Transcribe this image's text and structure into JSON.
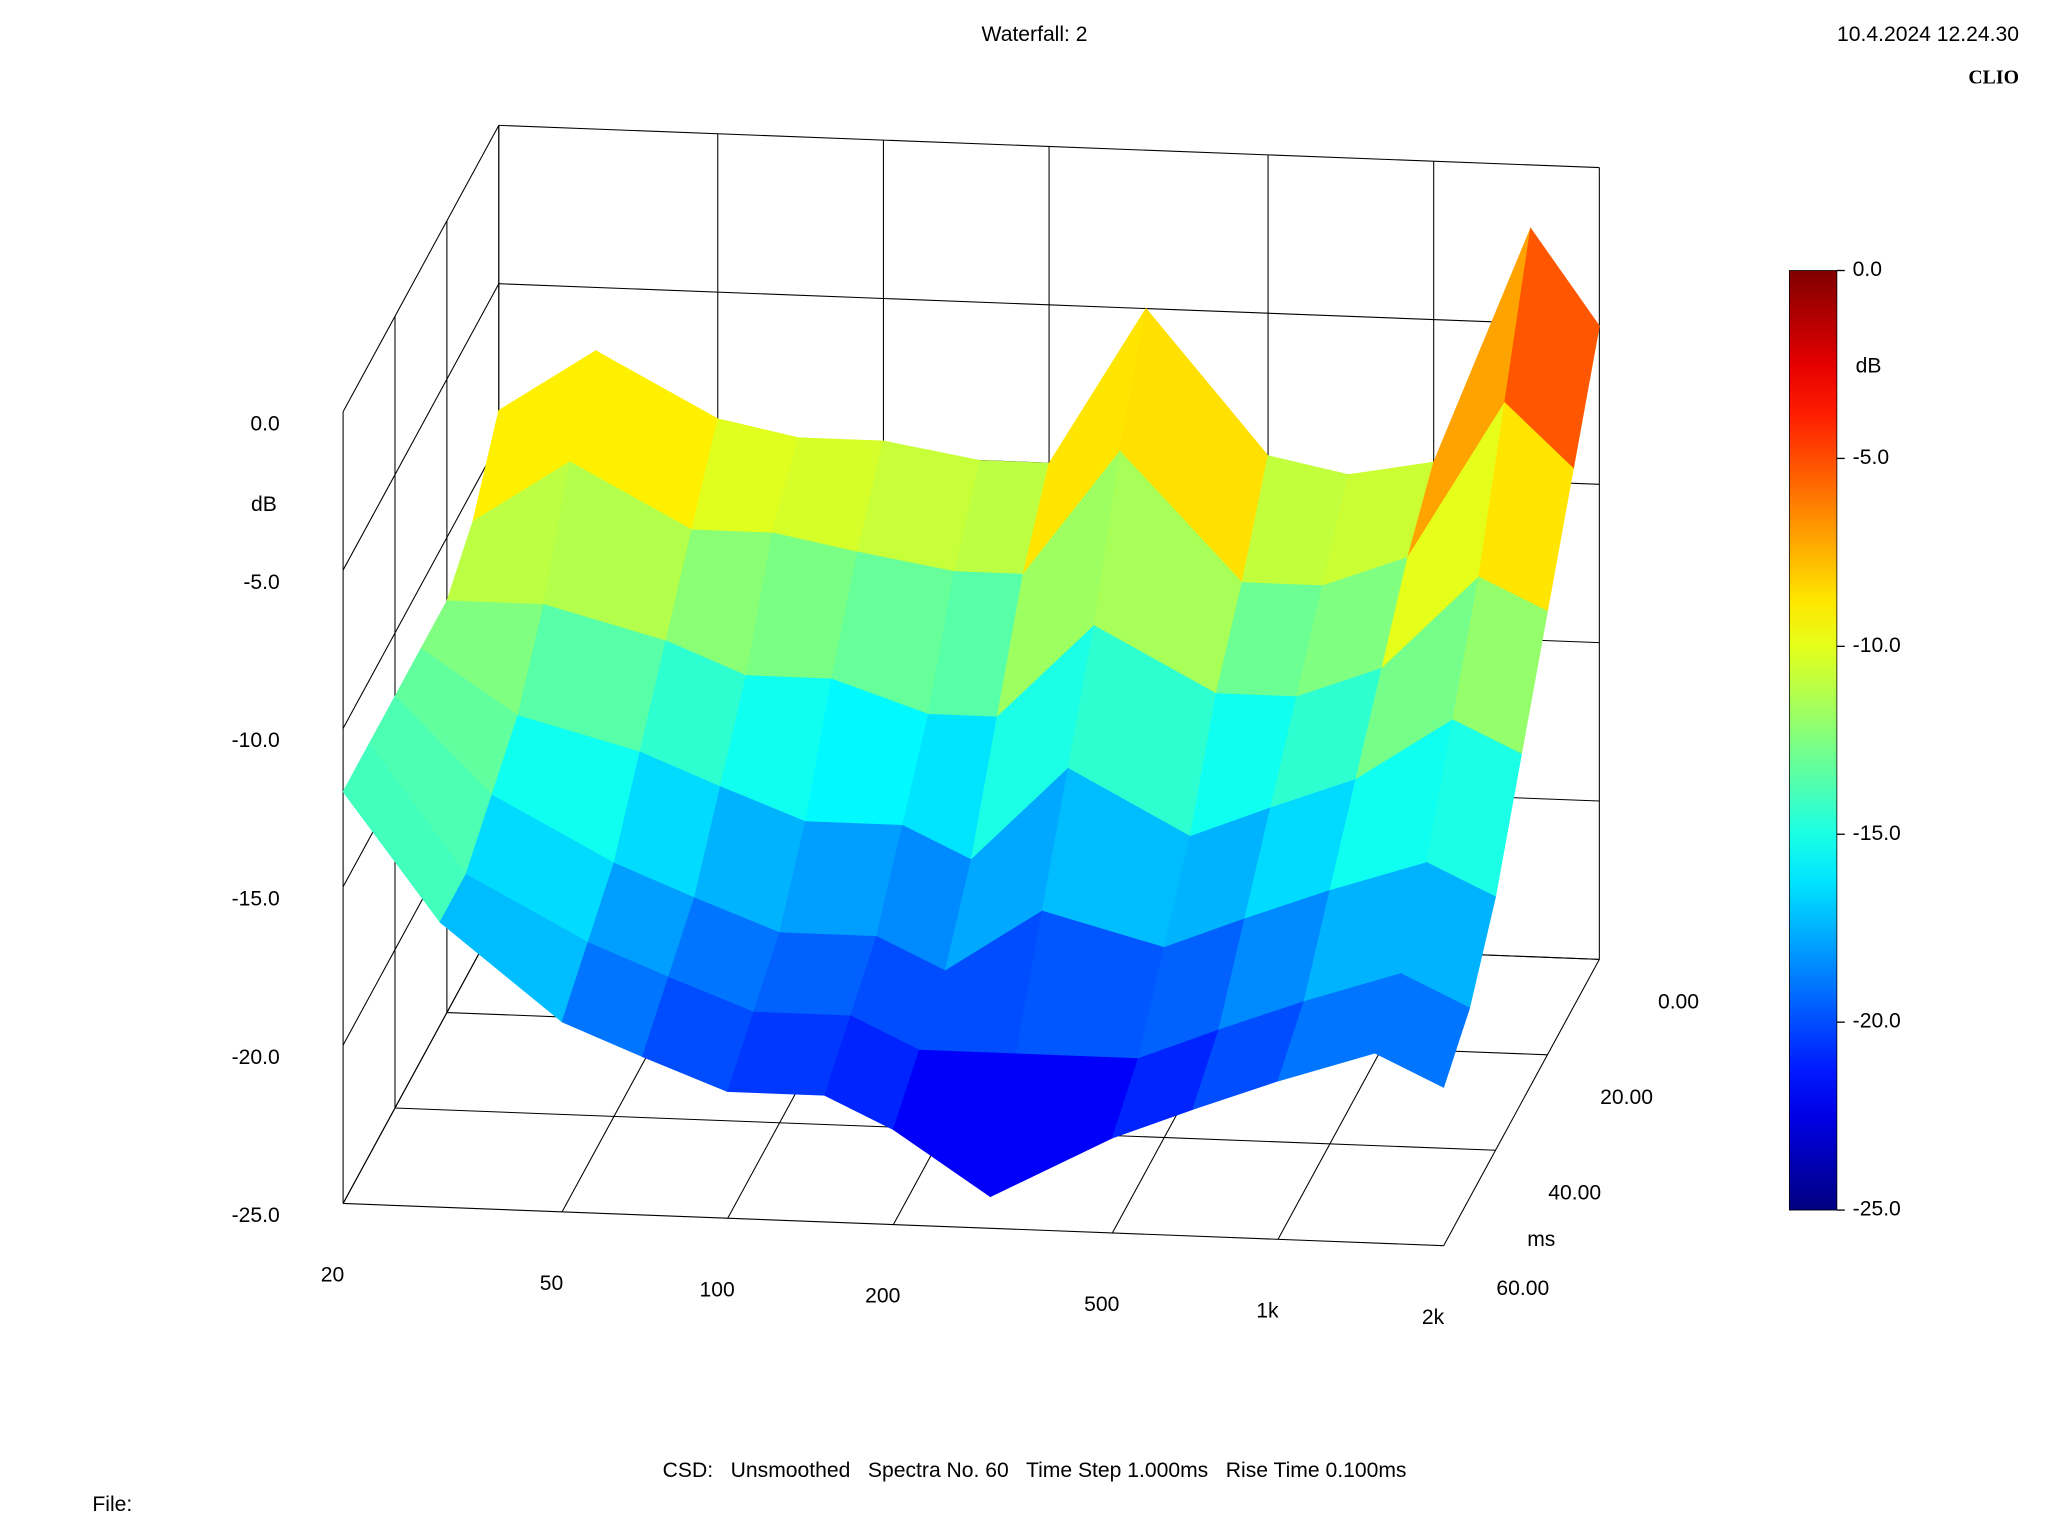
{
  "chart_data": {
    "type": "waterfall",
    "title": "Waterfall: 2",
    "timestamp": "10.4.2024 12.24.30",
    "brand": "CLIO",
    "zlabel": "dB",
    "ylabel": "ms",
    "xscale": "log",
    "xlim": [
      20,
      2000
    ],
    "xticks": [
      20,
      50,
      100,
      200,
      500,
      {
        "value": 1000,
        "label": "1k"
      },
      {
        "value": 2000,
        "label": "2k"
      }
    ],
    "ylim": [
      0,
      60
    ],
    "yticks": [
      {
        "value": 0,
        "label": "0.00"
      },
      {
        "value": 20,
        "label": "20.00"
      },
      {
        "value": 40,
        "label": "40.00"
      },
      {
        "value": 60,
        "label": "60.00"
      }
    ],
    "zlim": [
      -25,
      0
    ],
    "zticks": [
      {
        "value": 0,
        "label": "0.0"
      },
      {
        "value": -5,
        "label": "-5.0"
      },
      {
        "value": -10,
        "label": "-10.0"
      },
      {
        "value": -15,
        "label": "-15.0"
      },
      {
        "value": -20,
        "label": "-20.0"
      },
      {
        "value": -25,
        "label": "-25.0"
      }
    ],
    "colorbar": {
      "label": "dB",
      "lim": [
        -25,
        0
      ],
      "ticks": [
        {
          "value": 0,
          "label": "0.0"
        },
        {
          "value": -5,
          "label": "-5.0"
        },
        {
          "value": -10,
          "label": "-10.0"
        },
        {
          "value": -15,
          "label": "-15.0"
        },
        {
          "value": -20,
          "label": "-20.0"
        },
        {
          "value": -25,
          "label": "-25.0"
        }
      ]
    },
    "x": [
      20,
      30,
      50,
      70,
      100,
      150,
      200,
      300,
      500,
      700,
      1000,
      1500,
      2000
    ],
    "spectra": [
      {
        "time": 0,
        "values": [
          -9,
          -7,
          -9,
          -9.5,
          -9.5,
          -10,
          -10,
          -5,
          -9.5,
          -10,
          -9.5,
          -2,
          -5
        ]
      },
      {
        "time": 10,
        "values": [
          -11,
          -9,
          -11,
          -11,
          -11.5,
          -12,
          -12,
          -8,
          -12,
          -12,
          -11,
          -6,
          -8
        ]
      },
      {
        "time": 20,
        "values": [
          -12,
          -12,
          -13,
          -14,
          -14,
          -15,
          -15,
          -12,
          -14,
          -14,
          -13,
          -10,
          -11
        ]
      },
      {
        "time": 30,
        "values": [
          -12,
          -14,
          -15,
          -16,
          -17,
          -17,
          -18,
          -15,
          -17,
          -16,
          -15,
          -13,
          -14
        ]
      },
      {
        "time": 40,
        "values": [
          -12,
          -15,
          -17,
          -18,
          -19,
          -19,
          -20,
          -18,
          -19,
          -18,
          -17,
          -16,
          -17
        ]
      },
      {
        "time": 50,
        "values": [
          -12,
          -16,
          -18,
          -19,
          -20,
          -20,
          -21,
          -21,
          -21,
          -20,
          -19,
          -18,
          -19
        ]
      },
      {
        "time": 60,
        "values": [
          -12,
          -16,
          -19,
          -20,
          -21,
          -21,
          -22,
          -24,
          -22,
          -21,
          -20,
          -19,
          -20
        ]
      }
    ],
    "footer": "CSD:   Unsmoothed   Spectra No. 60   Time Step 1.000ms   Rise Time 0.100ms",
    "file_label": "File:"
  }
}
